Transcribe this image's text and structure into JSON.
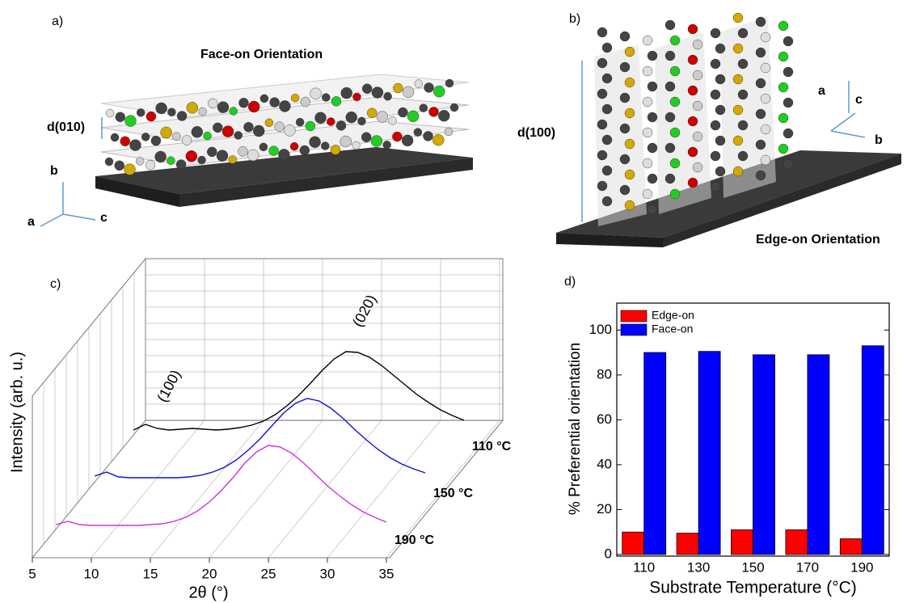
{
  "panel_a": {
    "label": "a)",
    "title": "Face-on Orientation",
    "spacing": "d(010)",
    "axes": [
      "b",
      "a",
      "c"
    ]
  },
  "panel_b": {
    "label": "b)",
    "title": "Edge-on Orientation",
    "spacing": "d(100)",
    "axes": [
      "a",
      "c",
      "b"
    ]
  },
  "chart_data": [
    {
      "type": "line",
      "panel_label": "c)",
      "x_label": "2θ (°)",
      "y_label": "Intensity (arb. u.)",
      "xlim": [
        5,
        35
      ],
      "xticks": [
        5,
        10,
        15,
        20,
        25,
        30,
        35
      ],
      "ylim": [
        0,
        110
      ],
      "annotations": [
        "(100)",
        "(020)"
      ],
      "x": [
        7,
        8,
        9,
        10,
        11,
        12,
        13,
        14,
        15,
        16,
        17,
        18,
        19,
        20,
        21,
        22,
        23,
        24,
        25,
        26,
        27,
        28,
        29,
        30,
        31,
        32,
        33,
        34,
        35
      ],
      "series": [
        {
          "name": "110 °C",
          "color": "#000000",
          "values": [
            3,
            10,
            5,
            3,
            4,
            5,
            4,
            3,
            4,
            6,
            9,
            14,
            22,
            33,
            46,
            61,
            77,
            91,
            100,
            99,
            93,
            83,
            71,
            59,
            47,
            37,
            28,
            21,
            15
          ]
        },
        {
          "name": "150 °C",
          "color": "#1010d0",
          "values": [
            4,
            9,
            3,
            2,
            2,
            2,
            2,
            2,
            3,
            5,
            9,
            15,
            24,
            36,
            50,
            66,
            82,
            94,
            100,
            97,
            88,
            76,
            62,
            49,
            37,
            27,
            19,
            13,
            8
          ]
        },
        {
          "name": "190 °C",
          "color": "#d030e0",
          "values": [
            2,
            6,
            2,
            1,
            1,
            1,
            1,
            1,
            2,
            3,
            6,
            11,
            19,
            30,
            44,
            60,
            78,
            92,
            100,
            98,
            90,
            78,
            64,
            50,
            38,
            27,
            18,
            11,
            5
          ]
        }
      ]
    },
    {
      "type": "bar",
      "panel_label": "d)",
      "x_label": "Substrate Temperature (°C)",
      "y_label": "% Preferential orientation",
      "categories": [
        "110",
        "130",
        "150",
        "170",
        "190"
      ],
      "ylim": [
        0,
        112
      ],
      "yticks": [
        0,
        20,
        40,
        60,
        80,
        100
      ],
      "legend": "upper-left",
      "series": [
        {
          "name": "Edge-on",
          "color": "#ff0000",
          "values": [
            10,
            9.5,
            11,
            11,
            7
          ]
        },
        {
          "name": "Face-on",
          "color": "#0000ff",
          "values": [
            90,
            90.5,
            89,
            89,
            93
          ]
        }
      ]
    }
  ]
}
